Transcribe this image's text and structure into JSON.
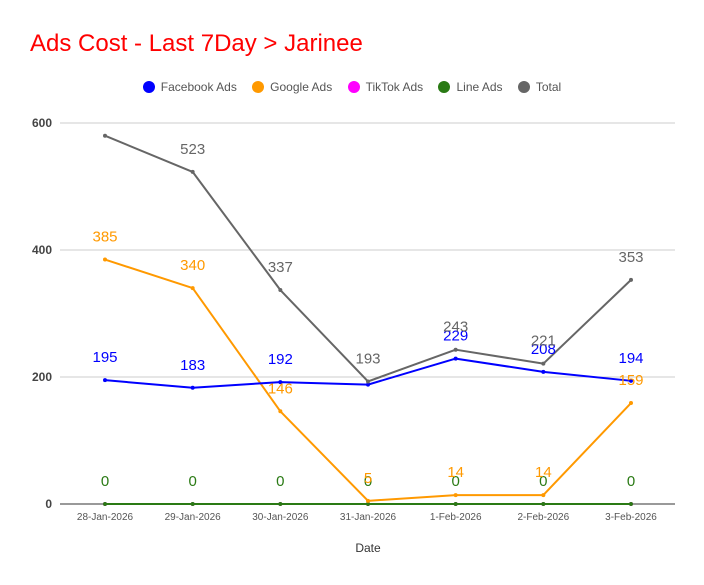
{
  "chart_data": {
    "type": "line",
    "title": "Ads Cost - Last 7Day > Jarinee",
    "xlabel": "Date",
    "ylabel": "",
    "ylim": [
      0,
      600
    ],
    "yticks": [
      0,
      200,
      400,
      600
    ],
    "grid": true,
    "legend_position": "top",
    "categories": [
      "28-Jan-2026",
      "29-Jan-2026",
      "30-Jan-2026",
      "31-Jan-2026",
      "1-Feb-2026",
      "2-Feb-2026",
      "3-Feb-2026"
    ],
    "series": [
      {
        "name": "Facebook Ads",
        "color": "#0000ff",
        "values": [
          195,
          183,
          192,
          188,
          229,
          208,
          194
        ],
        "labels": [
          "195",
          "183",
          "192",
          "",
          "229",
          "208",
          "194"
        ]
      },
      {
        "name": "Google Ads",
        "color": "#ff9900",
        "values": [
          385,
          340,
          146,
          5,
          14,
          14,
          159
        ],
        "labels": [
          "385",
          "340",
          "146",
          "5",
          "14",
          "14",
          "159"
        ]
      },
      {
        "name": "TikTok Ads",
        "color": "#ff00ff",
        "values": [
          0,
          0,
          0,
          0,
          0,
          0,
          0
        ],
        "labels": [
          "",
          "",
          "",
          "",
          "",
          "",
          ""
        ]
      },
      {
        "name": "Line Ads",
        "color": "#2a7a14",
        "values": [
          0,
          0,
          0,
          0,
          0,
          0,
          0
        ],
        "labels": [
          "0",
          "0",
          "0",
          "0",
          "0",
          "0",
          "0"
        ]
      },
      {
        "name": "Total",
        "color": "#666666",
        "values": [
          580,
          523,
          337,
          193,
          243,
          221,
          353
        ],
        "labels": [
          "",
          "523",
          "337",
          "193",
          "243",
          "221",
          "353"
        ]
      }
    ]
  }
}
